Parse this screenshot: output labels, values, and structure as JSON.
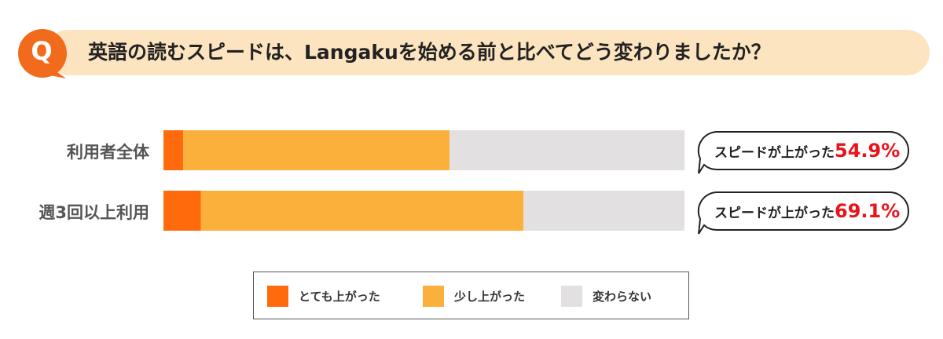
{
  "question": {
    "badge": "Q",
    "text": "英語の読むスピードは、Langakuを始める前と比べてどう変わりましたか？"
  },
  "colors": {
    "strong": "#ff6a0d",
    "slight": "#fbb03b",
    "same": "#e2e0e1",
    "highlight": "#e8141b",
    "accent_badge": "#f26a1b",
    "question_bar": "#fde4c0"
  },
  "chart_data": {
    "type": "bar",
    "orientation": "horizontal",
    "stacked": true,
    "title": "英語の読むスピードは、Langakuを始める前と比べてどう変わりましたか？",
    "categories": [
      "利用者全体",
      "週3回以上利用"
    ],
    "series": [
      {
        "name": "とても上がった",
        "values": [
          3.8,
          7.2
        ]
      },
      {
        "name": "少し上がった",
        "values": [
          51.1,
          61.9
        ]
      },
      {
        "name": "変わらない",
        "values": [
          45.1,
          30.9
        ]
      }
    ],
    "xlim": [
      0,
      100
    ],
    "unit": "%",
    "grid": false,
    "legend_position": "bottom",
    "annotations": [
      {
        "prefix": "スピードが上がった",
        "value": "54.9%"
      },
      {
        "prefix": "スピードが上がった",
        "value": "69.1%"
      }
    ]
  }
}
